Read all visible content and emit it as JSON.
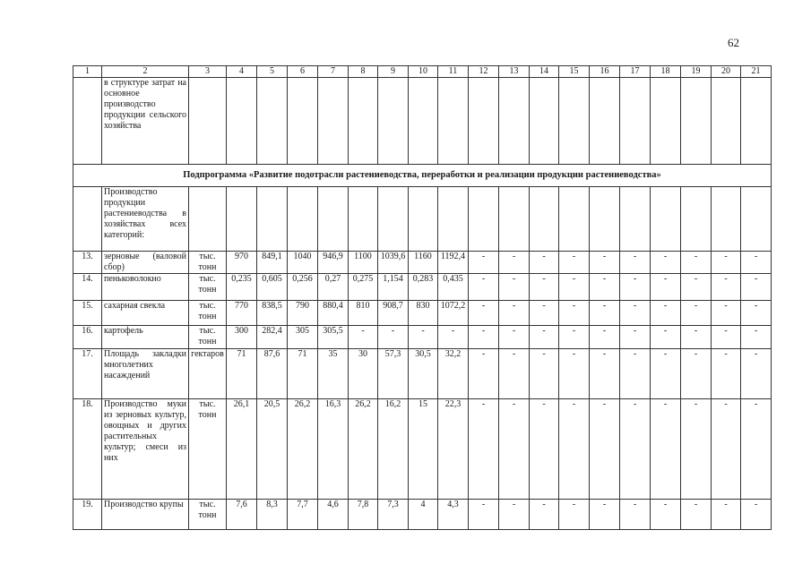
{
  "page_number": "62",
  "header": [
    "1",
    "2",
    "3",
    "4",
    "5",
    "6",
    "7",
    "8",
    "9",
    "10",
    "11",
    "12",
    "13",
    "14",
    "15",
    "16",
    "17",
    "18",
    "19",
    "20",
    "21"
  ],
  "rows": [
    {
      "num": "",
      "name": "в структуре затрат на основное производство продукции сельского хозяйства",
      "unit": "",
      "values": [
        "",
        "",
        "",
        "",
        "",
        "",
        "",
        "",
        "",
        "",
        "",
        "",
        "",
        "",
        "",
        "",
        "",
        ""
      ]
    },
    {
      "subheading": "Подпрограмма «Развитие подотрасли растениеводства, переработки и реализации продукции растениеводства»"
    },
    {
      "num": "",
      "name": "Производство продукции растениеводства в хозяйствах всех категорий:",
      "unit": "",
      "values": [
        "",
        "",
        "",
        "",
        "",
        "",
        "",
        "",
        "",
        "",
        "",
        "",
        "",
        "",
        "",
        "",
        "",
        ""
      ]
    },
    {
      "num": "13.",
      "name": "зерновые (валовой сбор)",
      "unit": "тыс. тонн",
      "values": [
        "970",
        "849,1",
        "1040",
        "946,9",
        "1100",
        "1039,6",
        "1160",
        "1192,4",
        "-",
        "-",
        "-",
        "-",
        "-",
        "-",
        "-",
        "-",
        "-",
        "-"
      ]
    },
    {
      "num": "14.",
      "name": "пеньковолокно",
      "unit": "тыс. тонн",
      "values": [
        "0,235",
        "0,605",
        "0,256",
        "0,27",
        "0,275",
        "1,154",
        "0,283",
        "0,435",
        "-",
        "-",
        "-",
        "-",
        "-",
        "-",
        "-",
        "-",
        "-",
        "-"
      ]
    },
    {
      "num": "15.",
      "name": "сахарная свекла",
      "unit": "тыс. тонн",
      "values": [
        "770",
        "838,5",
        "790",
        "880,4",
        "810",
        "908,7",
        "830",
        "1072,2",
        "-",
        "-",
        "-",
        "-",
        "-",
        "-",
        "-",
        "-",
        "-",
        "-"
      ]
    },
    {
      "num": "16.",
      "name": "картофель",
      "unit": "тыс. тонн",
      "values": [
        "300",
        "282,4",
        "305",
        "305,5",
        "-",
        "-",
        "-",
        "-",
        "-",
        "-",
        "-",
        "-",
        "-",
        "-",
        "-",
        "-",
        "-",
        "-"
      ]
    },
    {
      "num": "17.",
      "name": "Площадь закладки многолетних насаждений",
      "unit": "гектаров",
      "values": [
        "71",
        "87,6",
        "71",
        "35",
        "30",
        "57,3",
        "30,5",
        "32,2",
        "-",
        "-",
        "-",
        "-",
        "-",
        "-",
        "-",
        "-",
        "-",
        "-"
      ]
    },
    {
      "num": "18.",
      "name": "Производство муки из зерновых культур, овощных и других растительных культур; смеси из них",
      "unit": "тыс. тонн",
      "values": [
        "26,1",
        "20,5",
        "26,2",
        "16,3",
        "26,2",
        "16,2",
        "15",
        "22,3",
        "-",
        "-",
        "-",
        "-",
        "-",
        "-",
        "-",
        "-",
        "-",
        "-"
      ]
    },
    {
      "num": "19.",
      "name": "Производство крупы",
      "unit": "тыс. тонн",
      "values": [
        "7,6",
        "8,3",
        "7,7",
        "4,6",
        "7,8",
        "7,3",
        "4",
        "4,3",
        "-",
        "-",
        "-",
        "-",
        "-",
        "-",
        "-",
        "-",
        "-",
        "-"
      ]
    }
  ]
}
